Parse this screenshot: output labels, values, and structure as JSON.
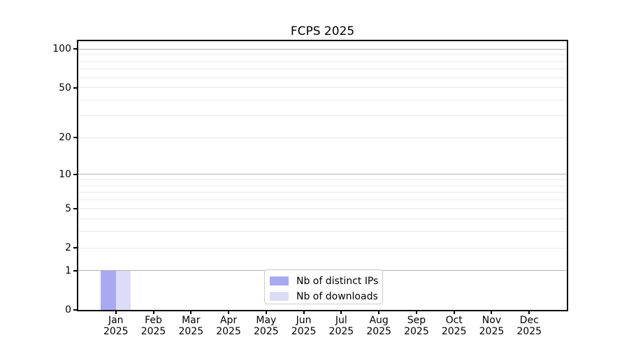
{
  "figure": {
    "background": "#ffffff"
  },
  "chart_data": {
    "type": "bar",
    "title": "FCPS 2025",
    "categories": [
      "Jan 2025",
      "Feb 2025",
      "Mar 2025",
      "Apr 2025",
      "May 2025",
      "Jun 2025",
      "Jul 2025",
      "Aug 2025",
      "Sep 2025",
      "Oct 2025",
      "Nov 2025",
      "Dec 2025"
    ],
    "series": [
      {
        "name": "Nb of distinct IPs",
        "color": "#a9a9f2",
        "values": [
          1,
          0,
          0,
          0,
          0,
          0,
          0,
          0,
          0,
          0,
          0,
          0
        ]
      },
      {
        "name": "Nb of downloads",
        "color": "#dcdcf8",
        "values": [
          1,
          0,
          0,
          0,
          0,
          0,
          0,
          0,
          0,
          0,
          0,
          0
        ]
      }
    ],
    "xlabel": "",
    "ylabel": "",
    "yscale": "log1p",
    "ylim": [
      0,
      115
    ],
    "yticks_labeled": [
      0,
      1,
      2,
      5,
      10,
      20,
      50,
      100
    ],
    "gridlines_major": [
      1,
      10,
      100
    ],
    "gridlines_minor": [
      2,
      3,
      4,
      5,
      6,
      7,
      8,
      9,
      20,
      30,
      40,
      50,
      60,
      70,
      80,
      90
    ],
    "grid_major_color": "#b0b0b0",
    "grid_minor_color": "#e9e9e9",
    "legend_position": "lower center",
    "legend_border_color": "#cccccc"
  }
}
